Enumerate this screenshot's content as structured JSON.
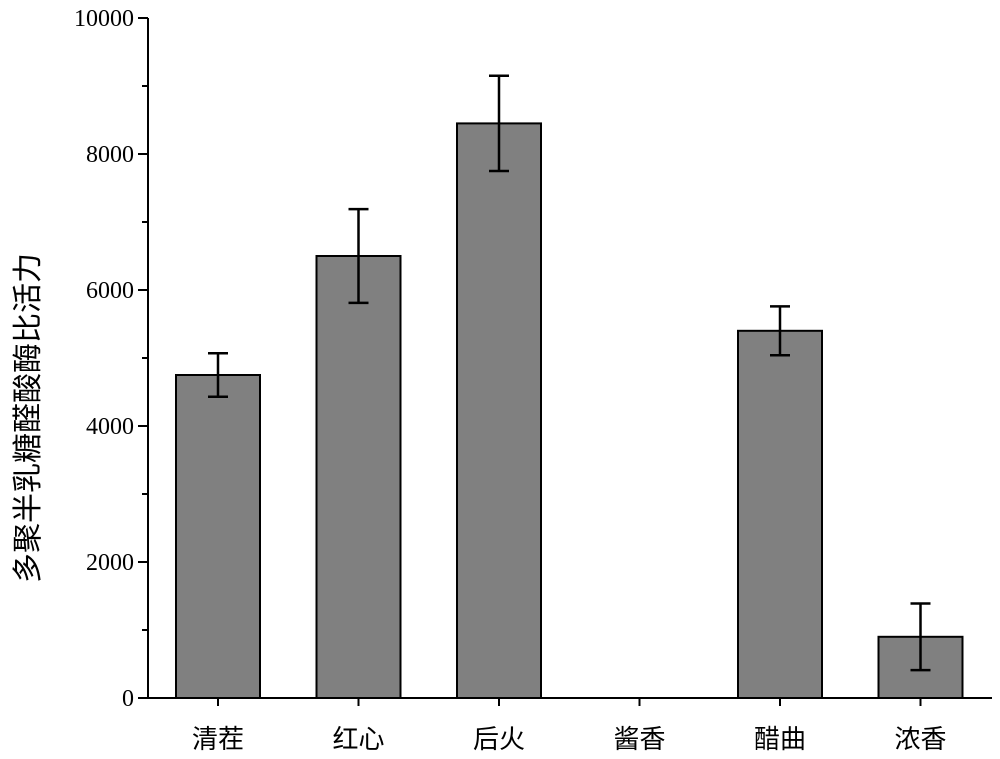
{
  "chart_data": {
    "type": "bar",
    "title": "",
    "xlabel": "",
    "ylabel": "多聚半乳糖醛酸酶比活力",
    "categories": [
      "清茬",
      "红心",
      "后火",
      "酱香",
      "醋曲",
      "浓香"
    ],
    "values": [
      4750,
      6500,
      8450,
      0,
      5400,
      900
    ],
    "errors": [
      320,
      690,
      700,
      0,
      360,
      490
    ],
    "ylim": [
      0,
      10000
    ],
    "yticks": [
      0,
      2000,
      4000,
      6000,
      8000,
      10000
    ],
    "ytick_labels": [
      "0",
      "2000",
      "4000",
      "6000",
      "8000",
      "10000"
    ],
    "grid": false,
    "colors": {
      "bar": "#808080",
      "edge": "#000000"
    }
  }
}
